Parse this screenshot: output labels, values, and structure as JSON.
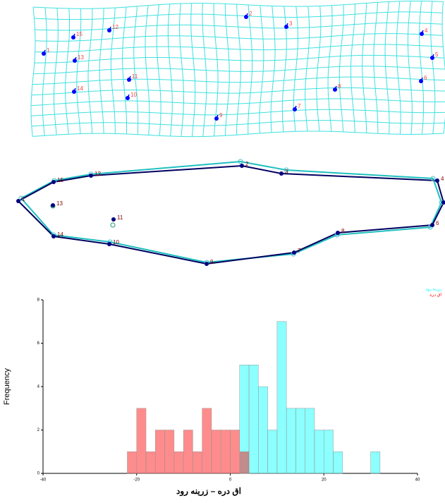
{
  "chart_data": [
    {
      "type": "deformation-grid",
      "landmarks": [
        "1",
        "2",
        "3",
        "4",
        "5",
        "6",
        "7",
        "8",
        "9",
        "10",
        "11",
        "12",
        "13",
        "14",
        "15"
      ]
    },
    {
      "type": "outline",
      "landmarks": [
        "1",
        "2",
        "3",
        "4",
        "5",
        "6",
        "7",
        "8",
        "9",
        "10",
        "11",
        "12",
        "13",
        "14",
        "15"
      ]
    },
    {
      "type": "histogram",
      "xlabel": "اق دره – زرینه رود",
      "ylabel": "Frequency",
      "xlim": [
        -40,
        40
      ],
      "ylim": [
        0,
        8
      ],
      "xticks": [
        -40,
        -20,
        0,
        20,
        40
      ],
      "yticks": [
        0,
        2,
        4,
        6,
        8
      ],
      "legend": "upper right",
      "series": [
        {
          "name": "زرینه رود",
          "color": "#00ffff",
          "bins": [
            2,
            4,
            6,
            8,
            10,
            12,
            14,
            16,
            18,
            20,
            22,
            24,
            26,
            28,
            30,
            32
          ],
          "values": [
            5,
            5,
            4,
            2,
            7,
            3,
            3,
            3,
            2,
            2,
            1,
            0,
            0,
            0,
            1
          ]
        },
        {
          "name": "اق دره",
          "color": "#ff0000",
          "bins": [
            -22,
            -20,
            -18,
            -16,
            -14,
            -12,
            -10,
            -8,
            -6,
            -4,
            -2,
            0,
            2,
            4
          ],
          "values": [
            1,
            3,
            1,
            2,
            2,
            1,
            2,
            1,
            3,
            2,
            2,
            2,
            1
          ]
        }
      ]
    }
  ]
}
